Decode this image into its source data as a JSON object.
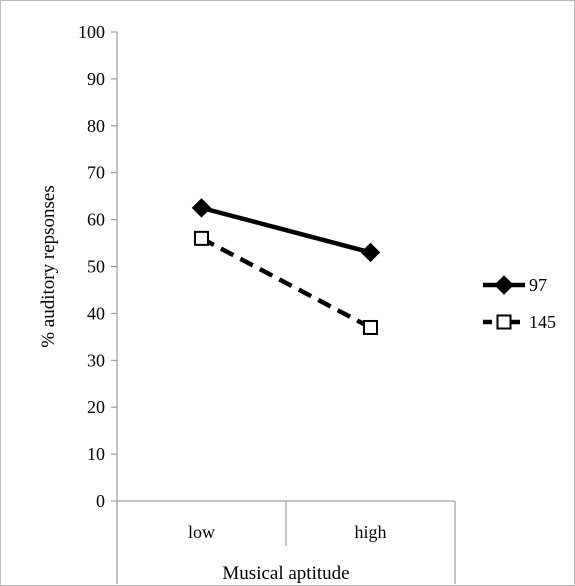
{
  "chart_data": {
    "type": "line",
    "title": "",
    "xlabel": "Musical aptitude",
    "ylabel": "% auditory repsonses",
    "categories": [
      "low",
      "high"
    ],
    "ylim": [
      0,
      100
    ],
    "yticks": [
      0,
      10,
      20,
      30,
      40,
      50,
      60,
      70,
      80,
      90,
      100
    ],
    "grid": false,
    "legend_position": "right",
    "series": [
      {
        "name": "97",
        "values": [
          62.5,
          53.0
        ],
        "line_style": "solid",
        "marker": "filled-diamond",
        "color": "#000000"
      },
      {
        "name": "145",
        "values": [
          56.0,
          37.0
        ],
        "line_style": "dashed",
        "marker": "open-square",
        "color": "#000000"
      }
    ]
  }
}
